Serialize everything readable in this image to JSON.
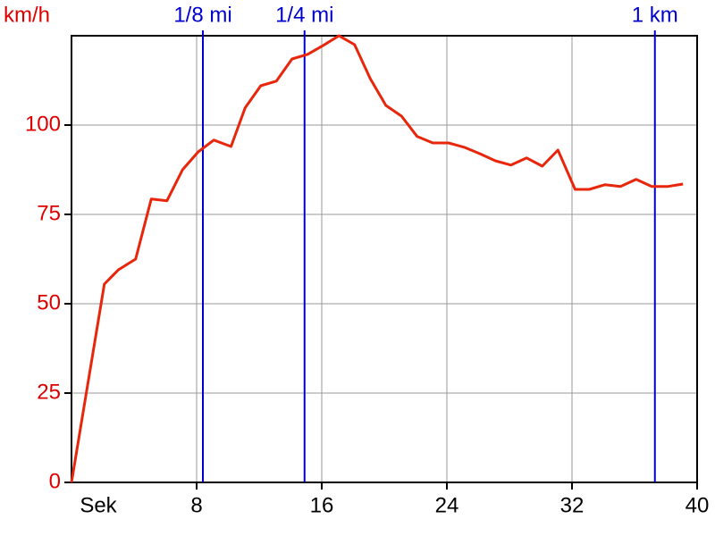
{
  "chart_data": {
    "type": "line",
    "y_label": "km/h",
    "x_label": "Sek",
    "x": [
      0,
      2.1,
      3.0,
      4.1,
      5.1,
      6.1,
      7.1,
      8.1,
      9.1,
      10.2,
      11.1,
      12.1,
      13.1,
      14.1,
      15.1,
      16.1,
      17.1,
      18.1,
      19.1,
      20.1,
      21.1,
      22.1,
      23.1,
      24.1,
      25.1,
      26.1,
      27.1,
      28.1,
      29.1,
      30.1,
      31.1,
      32.2,
      33.1,
      34.1,
      35.1,
      36.1,
      37.1,
      38.1,
      39.1
    ],
    "series": [
      {
        "color": "#e8260c",
        "values": [
          0,
          55.5,
          59.5,
          62.5,
          79.3,
          78.8,
          87.5,
          92.5,
          95.8,
          94,
          104.8,
          111,
          112.3,
          118.5,
          119.8,
          122.3,
          125,
          122.5,
          113,
          105.5,
          102.5,
          96.8,
          95,
          95,
          93.8,
          92,
          90,
          88.8,
          90.8,
          88.5,
          93,
          82,
          82,
          83.3,
          82.8,
          84.8,
          82.8,
          82.8,
          83.5
        ]
      }
    ],
    "markers": [
      {
        "label": "1/8 mi",
        "x": 8.4
      },
      {
        "label": "1/4 mi",
        "x": 14.9
      },
      {
        "label": "1 km",
        "x": 37.3
      }
    ],
    "marker_color": "#0000cc",
    "y_tick_color": "#dd0000",
    "xlim": [
      0,
      40
    ],
    "ylim": [
      0,
      125
    ],
    "xticks": [
      8,
      16,
      24,
      32,
      40
    ],
    "yticks": [
      0,
      25,
      50,
      75,
      100
    ],
    "grid": true
  }
}
